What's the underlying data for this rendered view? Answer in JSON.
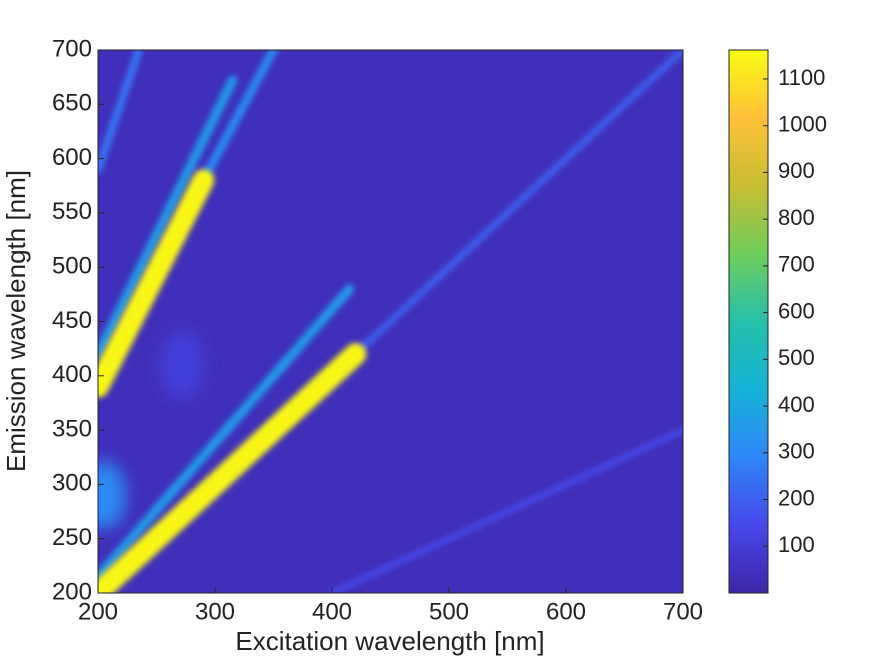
{
  "chart_data": {
    "type": "heatmap",
    "xlabel": "Excitation wavelength [nm]",
    "ylabel": "Emission wavelength [nm]",
    "xlim": [
      200,
      700
    ],
    "xticks": [
      200,
      300,
      400,
      500,
      600,
      700
    ],
    "ylim": [
      200,
      700
    ],
    "yticks": [
      200,
      250,
      300,
      350,
      400,
      450,
      500,
      550,
      600,
      650,
      700
    ],
    "colormap": "parula",
    "clim": [
      0,
      1162
    ],
    "cticks": [
      100,
      200,
      300,
      400,
      500,
      600,
      700,
      800,
      900,
      1000,
      1100
    ],
    "background": 40,
    "streaks": [
      {
        "x": [
          420,
          700
        ],
        "y": [
          420,
          700
        ],
        "value": 200
      },
      {
        "x": [
          200,
          415
        ],
        "y": [
          215,
          480
        ],
        "value": 350
      },
      {
        "x": [
          200,
          420
        ],
        "y": [
          200,
          420
        ],
        "value": 1150
      },
      {
        "x": [
          290,
          350
        ],
        "y": [
          580,
          700
        ],
        "value": 300
      },
      {
        "x": [
          200,
          315
        ],
        "y": [
          420,
          672
        ],
        "value": 350
      },
      {
        "x": [
          200,
          290
        ],
        "y": [
          390,
          580
        ],
        "value": 1150
      },
      {
        "x": [
          200,
          235
        ],
        "y": [
          590,
          700
        ],
        "value": 250
      },
      {
        "x": [
          400,
          700
        ],
        "y": [
          200,
          350
        ],
        "value": 150
      }
    ],
    "spots": [
      {
        "x": 205,
        "y": 290,
        "value": 300
      },
      {
        "x": 272,
        "y": 410,
        "value": 110
      }
    ]
  }
}
